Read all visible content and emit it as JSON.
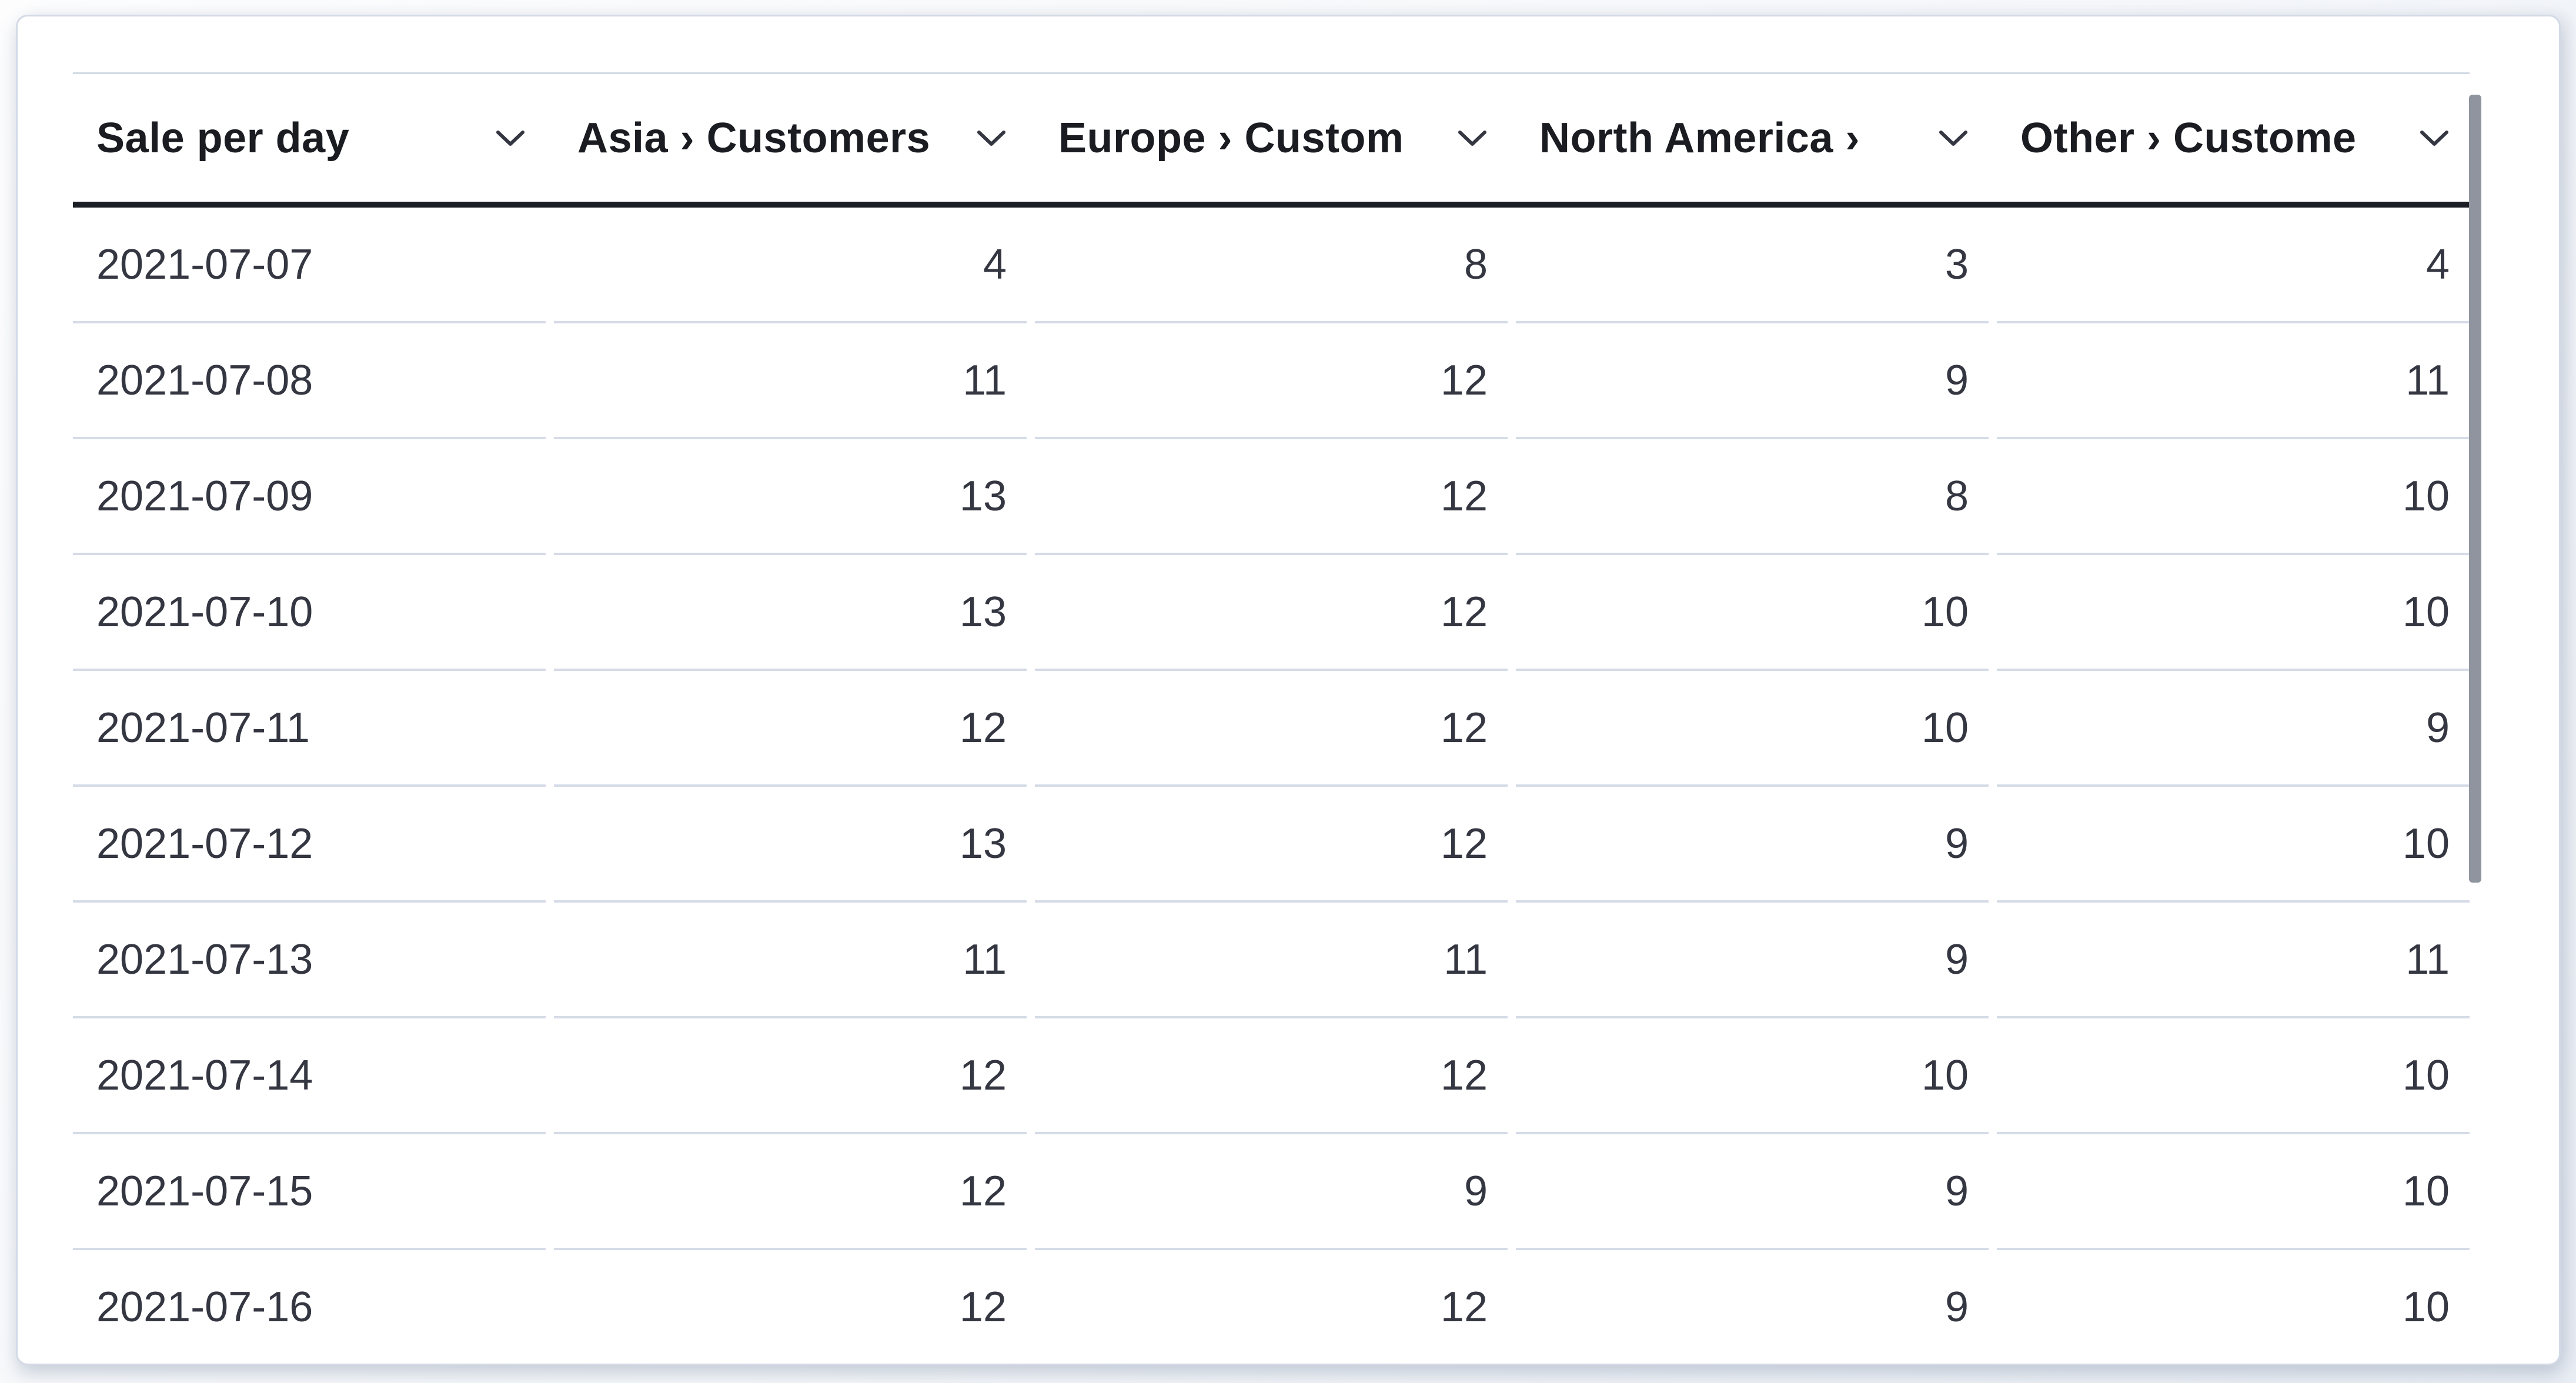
{
  "table": {
    "title": "Sale per day",
    "columns": [
      {
        "label": "Sale per day",
        "align": "left"
      },
      {
        "label": "Asia › Customers",
        "align": "right"
      },
      {
        "label": "Europe › Custom",
        "align": "right"
      },
      {
        "label": "North America › ",
        "align": "right"
      },
      {
        "label": "Other › Custome",
        "align": "right"
      }
    ],
    "rows": [
      [
        "2021-07-07",
        "4",
        "8",
        "3",
        "4"
      ],
      [
        "2021-07-08",
        "11",
        "12",
        "9",
        "11"
      ],
      [
        "2021-07-09",
        "13",
        "12",
        "8",
        "10"
      ],
      [
        "2021-07-10",
        "13",
        "12",
        "10",
        "10"
      ],
      [
        "2021-07-11",
        "12",
        "12",
        "10",
        "9"
      ],
      [
        "2021-07-12",
        "13",
        "12",
        "9",
        "10"
      ],
      [
        "2021-07-13",
        "11",
        "11",
        "9",
        "11"
      ],
      [
        "2021-07-14",
        "12",
        "12",
        "10",
        "10"
      ],
      [
        "2021-07-15",
        "12",
        "9",
        "9",
        "10"
      ],
      [
        "2021-07-16",
        "12",
        "12",
        "9",
        "10"
      ]
    ]
  },
  "icons": {
    "column_sort": "chevron-down-icon"
  },
  "colors": {
    "header_text": "#1a1c21",
    "body_text": "#343741",
    "header_border": "#1c1e26",
    "row_separator": "#d5dbe7",
    "card_border": "#d3dae6",
    "scrollbar_thumb": "#8f949e",
    "card_background": "#ffffff"
  },
  "scrollbar": {
    "orientation": "vertical",
    "position": "top"
  }
}
